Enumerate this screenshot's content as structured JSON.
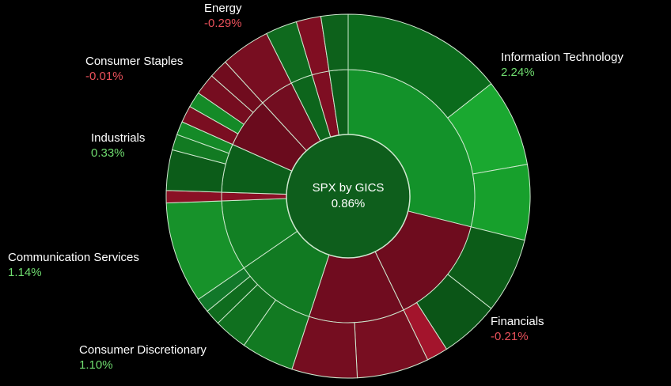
{
  "chart_data": {
    "type": "sunburst",
    "center": {
      "name": "SPX by GICS",
      "value": 0.86,
      "value_label": "0.86%",
      "color": "#0e5e1c"
    },
    "sectors": [
      {
        "name": "Information Technology",
        "weight": 28.9,
        "change": 2.24,
        "change_label": "2.24%",
        "color": "#13922a",
        "children": [
          {
            "weight": 14.4,
            "color": "#0b6b1c"
          },
          {
            "weight": 7.8,
            "color": "#1aa830"
          },
          {
            "weight": 6.7,
            "color": "#17a02c"
          }
        ]
      },
      {
        "name": "Financials",
        "weight": 13.9,
        "change": -0.21,
        "change_label": "-0.21%",
        "color": "#6e0c1e",
        "children": [
          {
            "weight": 6.7,
            "color": "#0c5c18"
          },
          {
            "weight": 5.3,
            "color": "#0b5517"
          },
          {
            "weight": 1.9,
            "color": "#a3142c"
          }
        ]
      },
      {
        "name": null,
        "weight": 12.2,
        "color": "#700c1f",
        "children": [
          {
            "weight": 6.4,
            "color": "#780e21"
          },
          {
            "weight": 5.8,
            "color": "#750d20"
          }
        ]
      },
      {
        "name": "Consumer Discretionary",
        "weight": 10.4,
        "change": 1.1,
        "change_label": "1.10%",
        "color": "#117a22",
        "children": [
          {
            "weight": 4.7,
            "color": "#127a22"
          },
          {
            "weight": 3.0,
            "color": "#10701f"
          },
          {
            "weight": 1.4,
            "color": "#0f6c1e"
          },
          {
            "weight": 1.3,
            "color": "#12782a"
          }
        ]
      },
      {
        "name": "Communication Services",
        "weight": 9.0,
        "change": 1.14,
        "change_label": "1.14%",
        "color": "#128024",
        "children": [
          {
            "weight": 9.0,
            "color": "#17922a"
          }
        ]
      },
      {
        "name": null,
        "weight": 1.1,
        "color": "#8a1025",
        "children": [
          {
            "weight": 1.1,
            "color": "#8a1025"
          }
        ]
      },
      {
        "name": "Industrials",
        "weight": 6.2,
        "change": 0.33,
        "change_label": "0.33%",
        "color": "#0c5e1a",
        "children": [
          {
            "weight": 3.6,
            "color": "#0c5c19"
          },
          {
            "weight": 1.4,
            "color": "#127a22"
          },
          {
            "weight": 1.2,
            "color": "#148a27"
          }
        ]
      },
      {
        "name": "Consumer Staples",
        "weight": 6.5,
        "change": -0.01,
        "change_label": "-0.01%",
        "color": "#6a0b1d",
        "children": [
          {
            "weight": 1.5,
            "color": "#7a0e21"
          },
          {
            "weight": 1.4,
            "color": "#148a27"
          },
          {
            "weight": 1.9,
            "color": "#760d20"
          },
          {
            "weight": 1.7,
            "color": "#700c1e"
          }
        ]
      },
      {
        "name": "Energy",
        "weight": 4.4,
        "change": -0.29,
        "change_label": "-0.29%",
        "color": "#720d20",
        "children": [
          {
            "weight": 4.4,
            "color": "#780e21"
          }
        ]
      },
      {
        "name": null,
        "weight": 2.8,
        "color": "#0d651c",
        "children": [
          {
            "weight": 2.8,
            "color": "#0f6a1e"
          }
        ]
      },
      {
        "name": null,
        "weight": 2.2,
        "color": "#7e0e22",
        "children": [
          {
            "weight": 2.2,
            "color": "#800e22"
          }
        ]
      },
      {
        "name": null,
        "weight": 2.4,
        "color": "#0c5e1a",
        "children": [
          {
            "weight": 2.4,
            "color": "#0d611b"
          }
        ]
      }
    ]
  }
}
